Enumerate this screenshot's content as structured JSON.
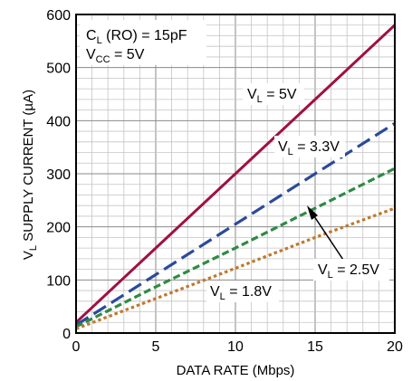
{
  "chart_data": {
    "type": "line",
    "title": "",
    "xlabel": "DATA RATE (Mbps)",
    "ylabel": {
      "main": "V",
      "sub": "L",
      "rest": " SUPPLY CURRENT (µA)"
    },
    "xlim": [
      0,
      20
    ],
    "ylim": [
      0,
      600
    ],
    "xticks": [
      0,
      5,
      10,
      15,
      20
    ],
    "yticks": [
      0,
      100,
      200,
      300,
      400,
      500,
      600
    ],
    "grid": true,
    "conditions": [
      {
        "main": "C",
        "sub": "L",
        "rest": " (RO) = 15pF"
      },
      {
        "main": "V",
        "sub": "CC",
        "rest": " = 5V"
      }
    ],
    "series": [
      {
        "name": {
          "main": "V",
          "sub": "L",
          "rest": " = 5V"
        },
        "color": "#a01040",
        "dash": "solid",
        "x": [
          0,
          5,
          10,
          15,
          20
        ],
        "y": [
          20,
          160,
          300,
          440,
          580
        ]
      },
      {
        "name": {
          "main": "V",
          "sub": "L",
          "rest": " = 3.3V"
        },
        "color": "#2b4a9a",
        "dash": "long",
        "x": [
          0,
          5,
          10,
          15,
          20
        ],
        "y": [
          15,
          110,
          205,
          300,
          395
        ]
      },
      {
        "name": {
          "main": "V",
          "sub": "L",
          "rest": " = 2.5V"
        },
        "color": "#2f8a44",
        "dash": "medium",
        "x": [
          0,
          5,
          10,
          15,
          20
        ],
        "y": [
          12,
          87,
          160,
          235,
          310
        ]
      },
      {
        "name": {
          "main": "V",
          "sub": "L",
          "rest": " = 1.8V"
        },
        "color": "#c07830",
        "dash": "dotted",
        "x": [
          0,
          5,
          10,
          15,
          20
        ],
        "y": [
          8,
          65,
          122,
          180,
          235
        ]
      }
    ]
  }
}
